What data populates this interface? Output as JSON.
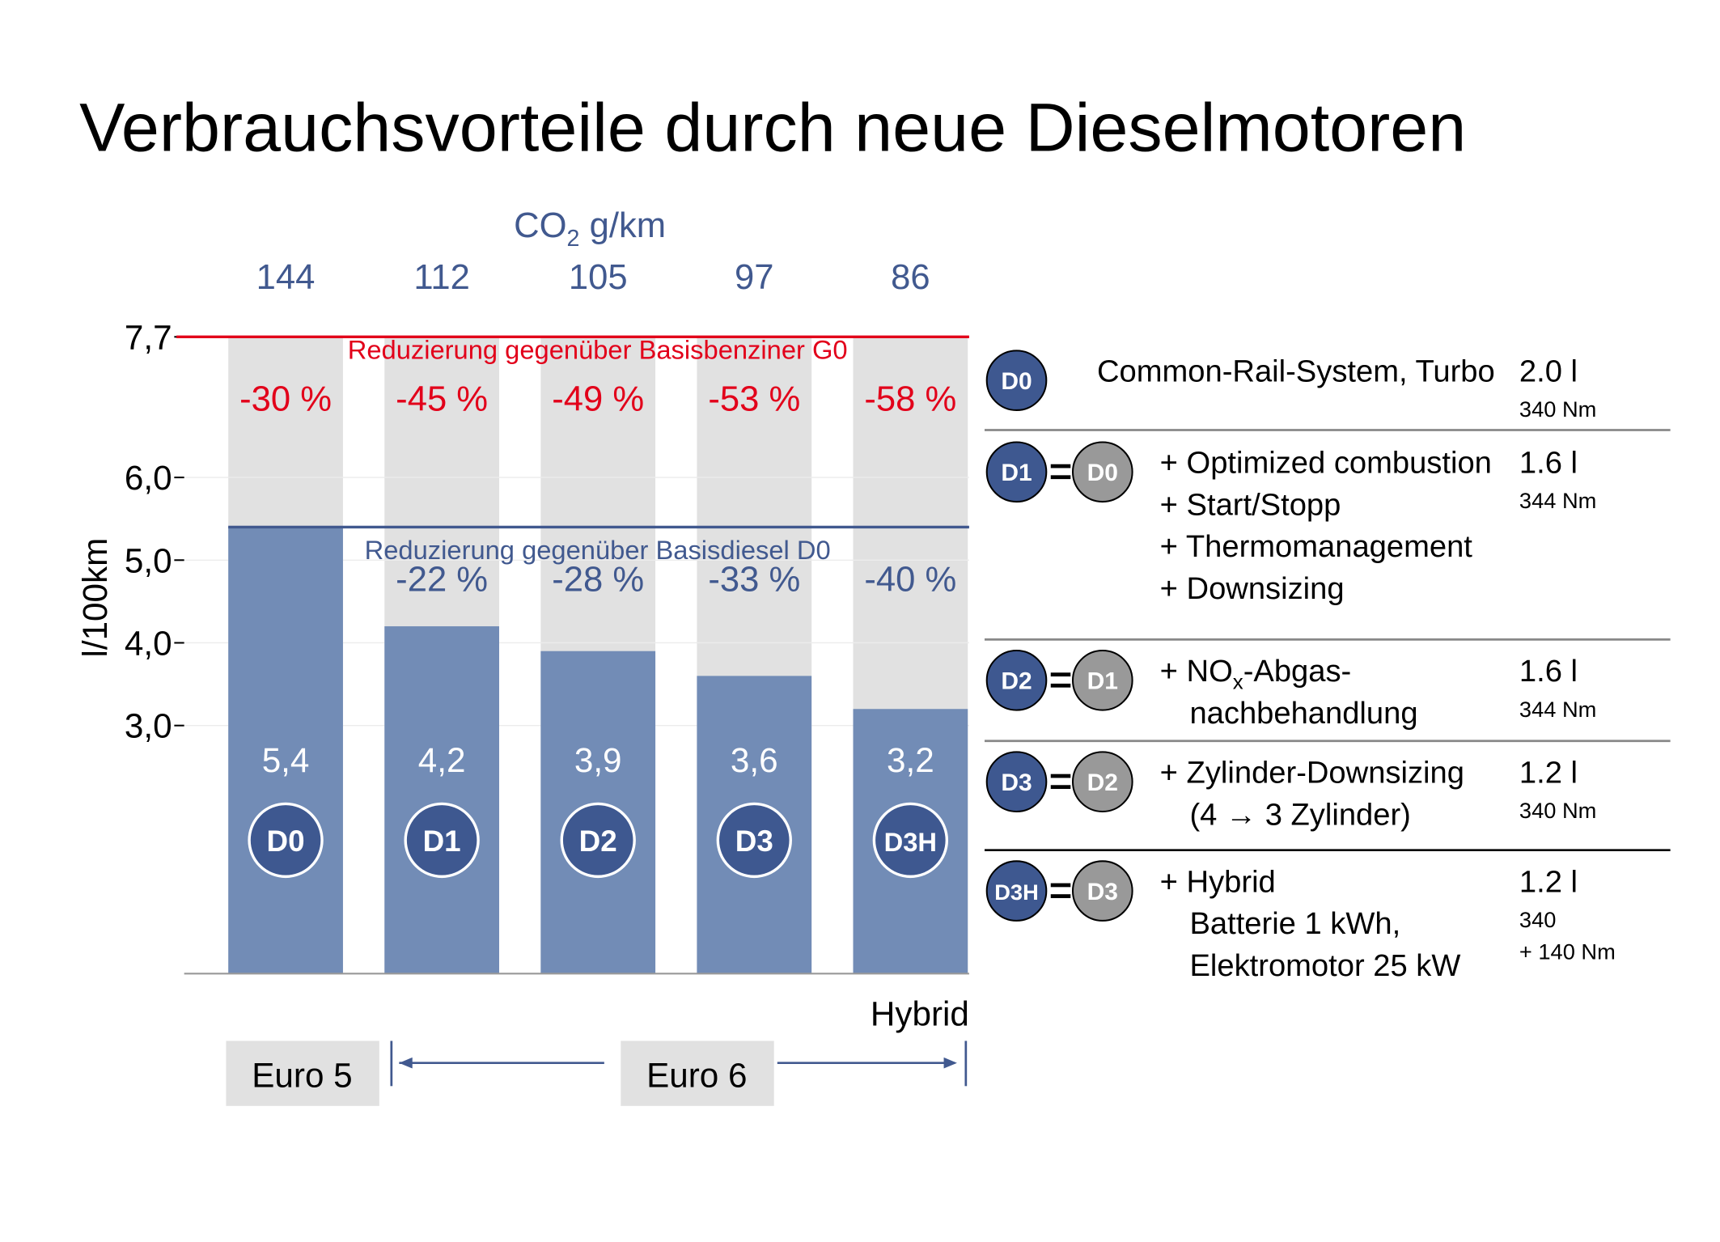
{
  "chart_data": {
    "type": "bar",
    "title": "Verbrauchsvorteile durch neue Dieselmotoren",
    "y_label": "l/100km",
    "categories": [
      "D0",
      "D1",
      "D2",
      "D3",
      "D3H"
    ],
    "series": [
      {
        "color": "#728cb6",
        "values": [
          5.4,
          4.2,
          3.9,
          3.6,
          3.2
        ],
        "value_labels": [
          "5,4",
          "4,2",
          "3,9",
          "3,6",
          "3,2"
        ]
      }
    ],
    "background_bar": {
      "value": 7.7,
      "color": "#e1e1e1"
    },
    "badge_color": "#3e5890",
    "ylim": [
      0,
      7.7
    ],
    "yticks": [
      {
        "value": 3,
        "label": "3,0"
      },
      {
        "value": 4,
        "label": "4,0"
      },
      {
        "value": 5,
        "label": "5,0"
      },
      {
        "value": 6,
        "label": "6,0"
      },
      {
        "value": 7.7,
        "label": "7,7"
      }
    ],
    "grid": true,
    "reference_lines": [
      {
        "value": 7.7,
        "color": "#e2001a",
        "label": "Reduzierung gegenüber Basisbenziner G0",
        "reductions": [
          "-30 %",
          "-45 %",
          "-49 %",
          "-53 %",
          "-58 %"
        ]
      },
      {
        "value": 5.4,
        "color": "#41598f",
        "label": "Reduzierung gegenüber Basisdiesel D0",
        "reductions": [
          null,
          "-22 %",
          "-28 %",
          "-33 %",
          "-40 %"
        ]
      }
    ],
    "co2": {
      "title_parts": [
        "CO",
        "2",
        " g/km"
      ],
      "values": [
        144,
        112,
        105,
        97,
        86
      ],
      "color": "#41598f"
    },
    "hybrid_label": "Hybrid",
    "emission_classes": [
      "Euro 5",
      "Euro 6"
    ]
  },
  "legend_table": {
    "rows": [
      {
        "badge": "D0",
        "lines": [
          "Common-Rail-System, Turbo"
        ],
        "displacement": "2.0 l",
        "torque": [
          "340 Nm"
        ]
      },
      {
        "badge": "D1",
        "base": "D0",
        "lines": [
          "+ Optimized combustion",
          "+ Start/Stopp",
          "+ Thermomanagement",
          "+ Downsizing"
        ],
        "displacement": "1.6 l",
        "torque": [
          "344 Nm"
        ]
      },
      {
        "badge": "D2",
        "base": "D1",
        "lines": [
          [
            "+ NO",
            "x",
            "-Abgas-"
          ],
          "nachbehandlung"
        ],
        "displacement": "1.6 l",
        "torque": [
          "344 Nm"
        ]
      },
      {
        "badge": "D3",
        "base": "D2",
        "lines": [
          "+ Zylinder-Downsizing",
          "(4 → 3 Zylinder)"
        ],
        "displacement": "1.2 l",
        "torque": [
          "340 Nm"
        ]
      },
      {
        "badge": "D3H",
        "base": "D3",
        "lines": [
          "+ Hybrid",
          "Batterie 1 kWh,",
          "Elektromotor 25 kW"
        ],
        "displacement": "1.2 l",
        "torque": [
          "340",
          "+ 140 Nm"
        ]
      }
    ]
  }
}
